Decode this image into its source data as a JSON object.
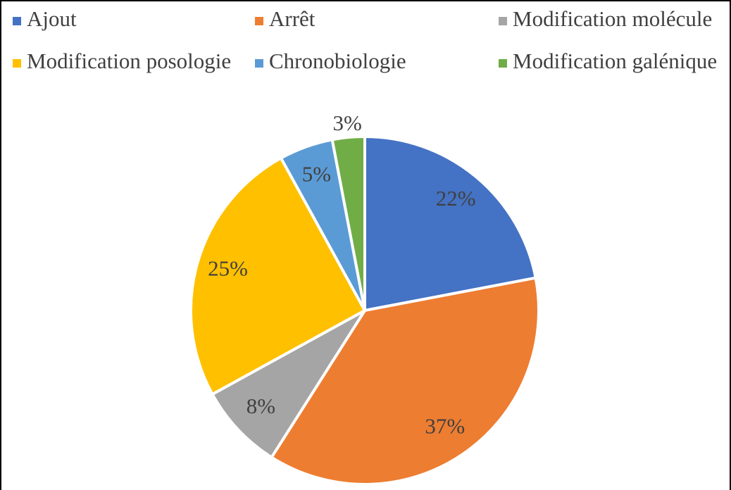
{
  "chart_data": {
    "type": "pie",
    "categories": [
      "Ajout",
      "Arrêt",
      "Modification molécule",
      "Modification posologie",
      "Chronobiologie",
      "Modification galénique"
    ],
    "values": [
      22,
      37,
      8,
      25,
      5,
      3
    ],
    "value_labels": [
      "22%",
      "37%",
      "8%",
      "25%",
      "5%",
      "3%"
    ],
    "colors": [
      "#4472c4",
      "#ed7d31",
      "#a5a5a5",
      "#ffc000",
      "#5b9bd5",
      "#70ad47"
    ],
    "legend": "top"
  }
}
